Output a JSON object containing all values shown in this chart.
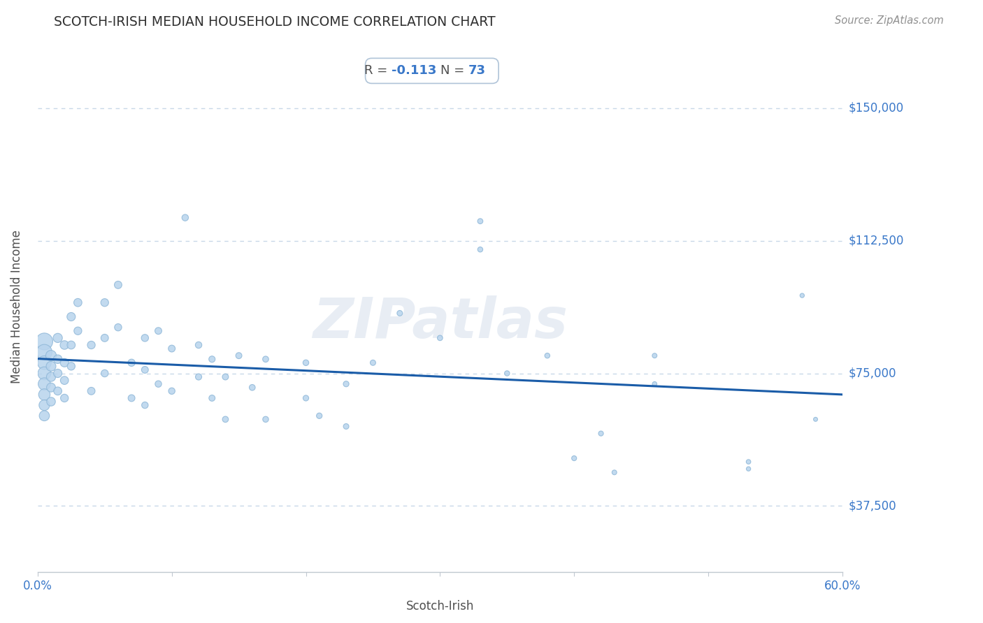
{
  "title": "SCOTCH-IRISH MEDIAN HOUSEHOLD INCOME CORRELATION CHART",
  "source": "Source: ZipAtlas.com",
  "xlabel": "Scotch-Irish",
  "ylabel": "Median Household Income",
  "R": -0.113,
  "N": 73,
  "xlim": [
    0.0,
    0.6
  ],
  "ylim": [
    18750,
    168750
  ],
  "yticks": [
    37500,
    75000,
    112500,
    150000
  ],
  "ytick_labels": [
    "$37,500",
    "$75,000",
    "$112,500",
    "$150,000"
  ],
  "xticks": [
    0.0,
    0.1,
    0.2,
    0.3,
    0.4,
    0.5,
    0.6
  ],
  "xtick_labels": [
    "0.0%",
    "",
    "",
    "",
    "",
    "",
    "60.0%"
  ],
  "watermark": "ZIPatlas",
  "dot_color": "#b8d4ed",
  "dot_edge_color": "#90b8d8",
  "line_color": "#1a5ca8",
  "title_color": "#303030",
  "axis_label_color": "#505050",
  "tick_color": "#3a78c9",
  "grid_color": "#c8d8e8",
  "background_color": "#ffffff",
  "scatter_x": [
    0.005,
    0.005,
    0.005,
    0.005,
    0.005,
    0.005,
    0.005,
    0.005,
    0.01,
    0.01,
    0.01,
    0.01,
    0.01,
    0.015,
    0.015,
    0.015,
    0.015,
    0.02,
    0.02,
    0.02,
    0.02,
    0.025,
    0.025,
    0.025,
    0.03,
    0.03,
    0.04,
    0.04,
    0.05,
    0.05,
    0.05,
    0.06,
    0.06,
    0.07,
    0.07,
    0.08,
    0.08,
    0.08,
    0.09,
    0.09,
    0.1,
    0.1,
    0.11,
    0.12,
    0.12,
    0.13,
    0.13,
    0.14,
    0.14,
    0.15,
    0.16,
    0.17,
    0.17,
    0.2,
    0.2,
    0.21,
    0.23,
    0.23,
    0.25,
    0.27,
    0.3,
    0.33,
    0.33,
    0.35,
    0.38,
    0.4,
    0.42,
    0.43,
    0.46,
    0.46,
    0.53,
    0.53,
    0.57,
    0.58
  ],
  "scatter_y": [
    84000,
    81000,
    78000,
    75000,
    72000,
    69000,
    66000,
    63000,
    80000,
    77000,
    74000,
    71000,
    67000,
    85000,
    79000,
    75000,
    70000,
    83000,
    78000,
    73000,
    68000,
    91000,
    83000,
    77000,
    95000,
    87000,
    83000,
    70000,
    95000,
    85000,
    75000,
    100000,
    88000,
    78000,
    68000,
    85000,
    76000,
    66000,
    87000,
    72000,
    82000,
    70000,
    119000,
    83000,
    74000,
    79000,
    68000,
    74000,
    62000,
    80000,
    71000,
    79000,
    62000,
    78000,
    68000,
    63000,
    72000,
    60000,
    78000,
    92000,
    85000,
    118000,
    110000,
    75000,
    80000,
    51000,
    58000,
    47000,
    80000,
    72000,
    50000,
    48000,
    97000,
    62000
  ],
  "scatter_sizes": [
    300,
    250,
    200,
    180,
    160,
    140,
    120,
    110,
    120,
    100,
    90,
    85,
    80,
    90,
    80,
    75,
    70,
    80,
    75,
    70,
    65,
    75,
    70,
    65,
    70,
    65,
    65,
    60,
    65,
    60,
    55,
    60,
    55,
    55,
    50,
    55,
    50,
    45,
    50,
    45,
    50,
    45,
    45,
    45,
    42,
    42,
    40,
    40,
    38,
    40,
    38,
    38,
    36,
    36,
    34,
    34,
    34,
    32,
    32,
    32,
    30,
    30,
    28,
    28,
    28,
    26,
    26,
    24,
    24,
    22,
    22,
    20,
    20,
    18
  ]
}
